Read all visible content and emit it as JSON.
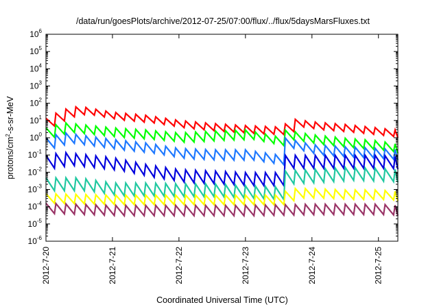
{
  "chart_data": {
    "type": "line",
    "title": "/data/run/goesPlots/archive/2012-07-25/07:00/flux/../flux/5daysMarsFluxes.txt",
    "xlabel": "Coordinated Universal Time (UTC)",
    "ylabel": {
      "base": "protons/cm",
      "sup": "2",
      "rest": "-s-sr-MeV"
    },
    "xscale": "time",
    "yscale": "log",
    "xlim": [
      "2012-07-20T00:00",
      "2012-07-25T07:00"
    ],
    "ylim": [
      1e-06,
      1000000.0
    ],
    "x_ticks": [
      "2012-7-20",
      "2012-7-21",
      "2012-7-22",
      "2012-7-23",
      "2012-7-24",
      "2012-7-25"
    ],
    "y_ticks": [
      {
        "base": "10",
        "exp": "-6"
      },
      {
        "base": "10",
        "exp": "-5"
      },
      {
        "base": "10",
        "exp": "-4"
      },
      {
        "base": "10",
        "exp": "-3"
      },
      {
        "base": "10",
        "exp": "-2"
      },
      {
        "base": "10",
        "exp": "-1"
      },
      {
        "base": "10",
        "exp": "0"
      },
      {
        "base": "10",
        "exp": "1"
      },
      {
        "base": "10",
        "exp": "2"
      },
      {
        "base": "10",
        "exp": "3"
      },
      {
        "base": "10",
        "exp": "4"
      },
      {
        "base": "10",
        "exp": "5"
      },
      {
        "base": "10",
        "exp": "6"
      }
    ],
    "grid": false,
    "legend": "none",
    "series": [
      {
        "color": "#ff0000",
        "values": [
          [
            "2012-07-20T00:00",
            8
          ],
          [
            "2012-07-20T06:00",
            25
          ],
          [
            "2012-07-20T12:00",
            40
          ],
          [
            "2012-07-21T00:00",
            18
          ],
          [
            "2012-07-21T12:00",
            12
          ],
          [
            "2012-07-22T00:00",
            6
          ],
          [
            "2012-07-22T12:00",
            4
          ],
          [
            "2012-07-23T00:00",
            3
          ],
          [
            "2012-07-23T12:00",
            2.5
          ],
          [
            "2012-07-23T18:00",
            7
          ],
          [
            "2012-07-24T00:00",
            5
          ],
          [
            "2012-07-24T12:00",
            3.5
          ],
          [
            "2012-07-25T00:00",
            2.2
          ],
          [
            "2012-07-25T07:00",
            1.6
          ]
        ]
      },
      {
        "color": "#00ff00",
        "values": [
          [
            "2012-07-20T00:00",
            2
          ],
          [
            "2012-07-20T06:00",
            4
          ],
          [
            "2012-07-21T00:00",
            2
          ],
          [
            "2012-07-21T12:00",
            1.5
          ],
          [
            "2012-07-22T00:00",
            1
          ],
          [
            "2012-07-22T12:00",
            1.3
          ],
          [
            "2012-07-23T00:00",
            1.5
          ],
          [
            "2012-07-23T12:00",
            0.6
          ],
          [
            "2012-07-23T14:00",
            1.5
          ],
          [
            "2012-07-24T00:00",
            0.8
          ],
          [
            "2012-07-24T12:00",
            0.5
          ],
          [
            "2012-07-25T00:00",
            0.35
          ],
          [
            "2012-07-25T07:00",
            0.22
          ]
        ]
      },
      {
        "color": "#1e78ff",
        "values": [
          [
            "2012-07-20T00:00",
            0.5
          ],
          [
            "2012-07-20T06:00",
            1
          ],
          [
            "2012-07-21T00:00",
            0.4
          ],
          [
            "2012-07-21T12:00",
            0.25
          ],
          [
            "2012-07-22T00:00",
            0.12
          ],
          [
            "2012-07-22T12:00",
            0.1
          ],
          [
            "2012-07-23T00:00",
            0.1
          ],
          [
            "2012-07-23T12:00",
            0.05
          ],
          [
            "2012-07-23T14:00",
            0.5
          ],
          [
            "2012-07-24T00:00",
            0.2
          ],
          [
            "2012-07-24T12:00",
            0.15
          ],
          [
            "2012-07-25T00:00",
            0.12
          ],
          [
            "2012-07-25T07:00",
            0.1
          ]
        ]
      },
      {
        "color": "#0000dd",
        "values": [
          [
            "2012-07-20T00:00",
            0.04
          ],
          [
            "2012-07-20T06:00",
            0.06
          ],
          [
            "2012-07-21T00:00",
            0.03
          ],
          [
            "2012-07-21T12:00",
            0.012
          ],
          [
            "2012-07-22T00:00",
            0.006
          ],
          [
            "2012-07-22T12:00",
            0.005
          ],
          [
            "2012-07-23T00:00",
            0.004
          ],
          [
            "2012-07-23T12:00",
            0.004
          ],
          [
            "2012-07-23T14:00",
            0.04
          ],
          [
            "2012-07-24T00:00",
            0.04
          ],
          [
            "2012-07-24T12:00",
            0.04
          ],
          [
            "2012-07-25T00:00",
            0.04
          ],
          [
            "2012-07-25T07:00",
            0.035
          ]
        ]
      },
      {
        "color": "#20c8a0",
        "values": [
          [
            "2012-07-20T00:00",
            0.002
          ],
          [
            "2012-07-20T12:00",
            0.002
          ],
          [
            "2012-07-21T00:00",
            0.001
          ],
          [
            "2012-07-21T12:00",
            0.001
          ],
          [
            "2012-07-22T00:00",
            0.0009
          ],
          [
            "2012-07-22T12:00",
            0.0009
          ],
          [
            "2012-07-23T00:00",
            0.0007
          ],
          [
            "2012-07-23T12:00",
            0.0006
          ],
          [
            "2012-07-23T14:00",
            0.005
          ],
          [
            "2012-07-24T00:00",
            0.006
          ],
          [
            "2012-07-24T12:00",
            0.008
          ],
          [
            "2012-07-25T00:00",
            0.007
          ],
          [
            "2012-07-25T07:00",
            0.006
          ]
        ]
      },
      {
        "color": "#ffff00",
        "values": [
          [
            "2012-07-20T00:00",
            0.0003
          ],
          [
            "2012-07-21T00:00",
            0.00025
          ],
          [
            "2012-07-22T00:00",
            0.00025
          ],
          [
            "2012-07-23T00:00",
            0.00025
          ],
          [
            "2012-07-23T12:00",
            0.00025
          ],
          [
            "2012-07-23T16:00",
            0.0006
          ],
          [
            "2012-07-24T00:00",
            0.0006
          ],
          [
            "2012-07-24T12:00",
            0.0005
          ],
          [
            "2012-07-25T00:00",
            0.0005
          ],
          [
            "2012-07-25T07:00",
            0.0004
          ]
        ]
      },
      {
        "color": "#993366",
        "values": [
          [
            "2012-07-20T00:00",
            8e-05
          ],
          [
            "2012-07-21T00:00",
            6e-05
          ],
          [
            "2012-07-22T00:00",
            6e-05
          ],
          [
            "2012-07-23T00:00",
            6e-05
          ],
          [
            "2012-07-24T00:00",
            7e-05
          ],
          [
            "2012-07-25T00:00",
            7e-05
          ],
          [
            "2012-07-25T07:00",
            6e-05
          ]
        ]
      }
    ]
  }
}
